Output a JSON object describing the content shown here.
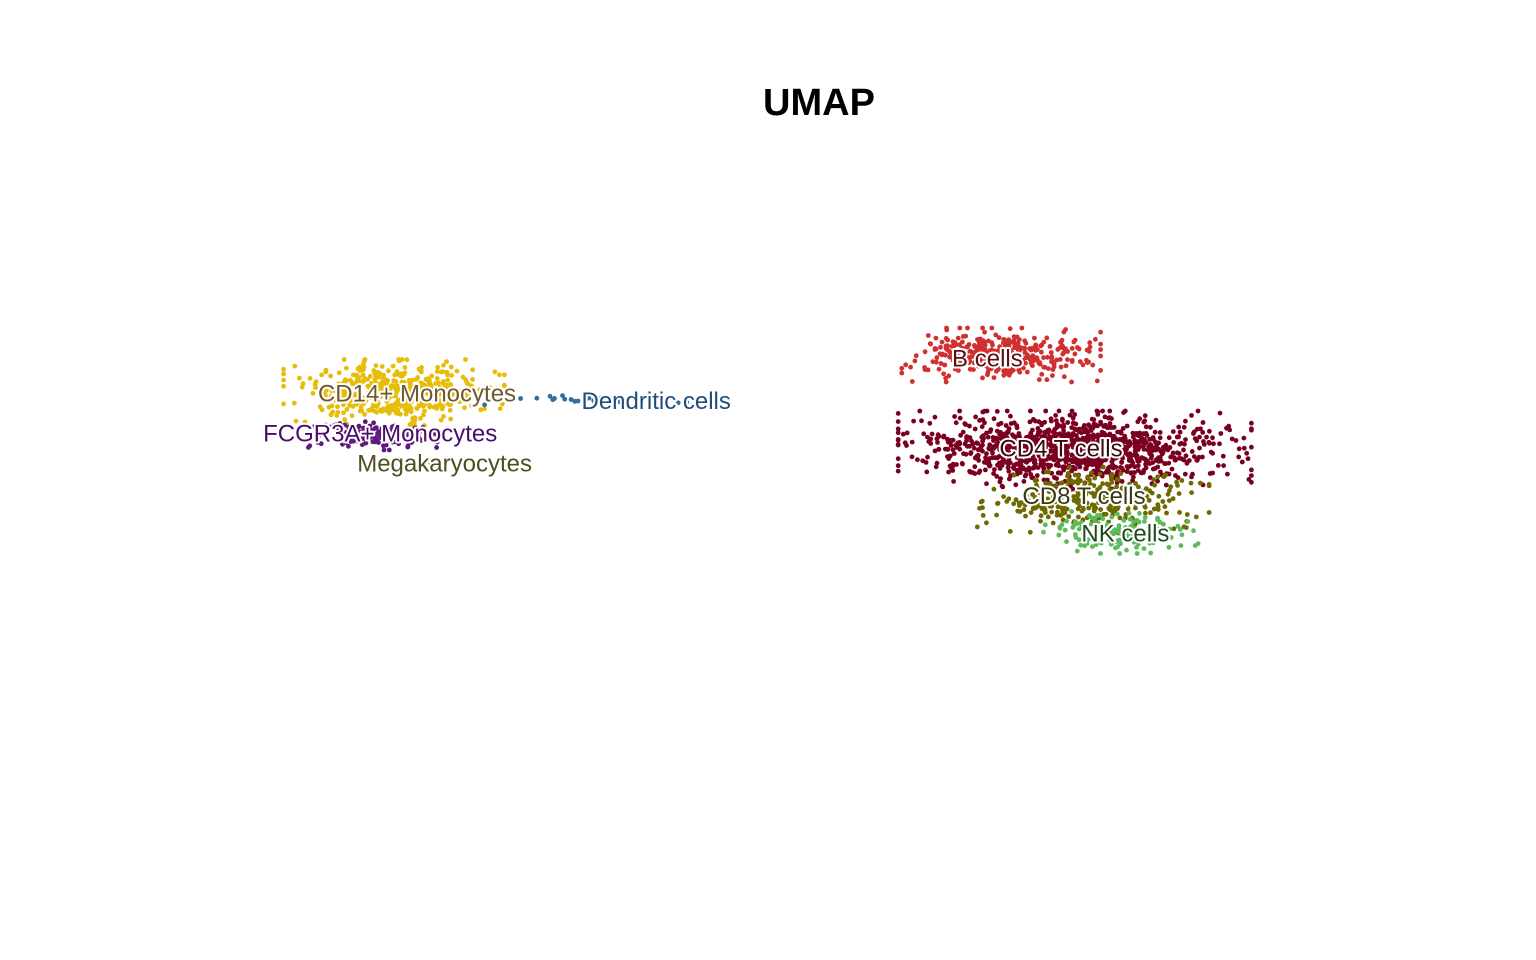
{
  "chart_data": {
    "type": "scatter",
    "title": "UMAP",
    "xlabel": "",
    "ylabel": "",
    "grid": false,
    "axes_visible": false,
    "legend": "none",
    "xlim": [
      -10,
      15
    ],
    "ylim": [
      -10,
      10
    ],
    "clusters": [
      {
        "name": "CD14+ Monocytes",
        "color": "#E6BE0A",
        "center": [
          -6.0,
          2.3
        ],
        "spread": [
          1.0,
          0.55
        ],
        "count": 480
      },
      {
        "name": "FCGR3A+ Monocytes",
        "color": "#5E1A7E",
        "center": [
          -6.5,
          0.6
        ],
        "spread": [
          0.6,
          0.25
        ],
        "count": 160
      },
      {
        "name": "Megakaryocytes",
        "color": "#8C8C4A",
        "center": [
          -5.2,
          -0.5
        ],
        "spread": [
          0.08,
          0.06
        ],
        "count": 3
      },
      {
        "name": "Dendritic cells",
        "color": "#2F6E9E",
        "center": [
          -1.7,
          2.0
        ],
        "spread": [
          1.3,
          0.08
        ],
        "count": 28
      },
      {
        "name": "B cells",
        "color": "#D03030",
        "center": [
          7.2,
          3.8
        ],
        "spread": [
          0.9,
          0.45
        ],
        "count": 380
      },
      {
        "name": "CD4 T cells",
        "color": "#7A0020",
        "center": [
          8.8,
          0.0
        ],
        "spread": [
          1.6,
          0.65
        ],
        "count": 1150
      },
      {
        "name": "CD8 T cells",
        "color": "#6E6A00",
        "center": [
          9.2,
          -2.0
        ],
        "spread": [
          1.05,
          0.55
        ],
        "count": 310
      },
      {
        "name": "NK cells",
        "color": "#5DBB5D",
        "center": [
          9.8,
          -3.3
        ],
        "spread": [
          0.7,
          0.35
        ],
        "count": 170
      }
    ],
    "labels": [
      {
        "text": "CD14+ Monocytes",
        "x": -5.5,
        "y": 2.2,
        "color": "#6E5A2A"
      },
      {
        "text": "Dendritic cells",
        "x": -0.3,
        "y": 1.9,
        "color": "#1F4E79"
      },
      {
        "text": "FCGR3A+ Monocytes",
        "x": -6.3,
        "y": 0.6,
        "color": "#4A0E6A"
      },
      {
        "text": "Megakaryocytes",
        "x": -4.9,
        "y": -0.6,
        "color": "#4E4E1E"
      },
      {
        "text": "B cells",
        "x": 6.9,
        "y": 3.6,
        "color": "#5A1010"
      },
      {
        "text": "CD4 T cells",
        "x": 8.5,
        "y": 0.0,
        "color": "#3A0A10"
      },
      {
        "text": "CD8 T cells",
        "x": 9.0,
        "y": -1.9,
        "color": "#3A3A10"
      },
      {
        "text": "NK cells",
        "x": 9.9,
        "y": -3.4,
        "color": "#1E4A1E"
      }
    ]
  }
}
